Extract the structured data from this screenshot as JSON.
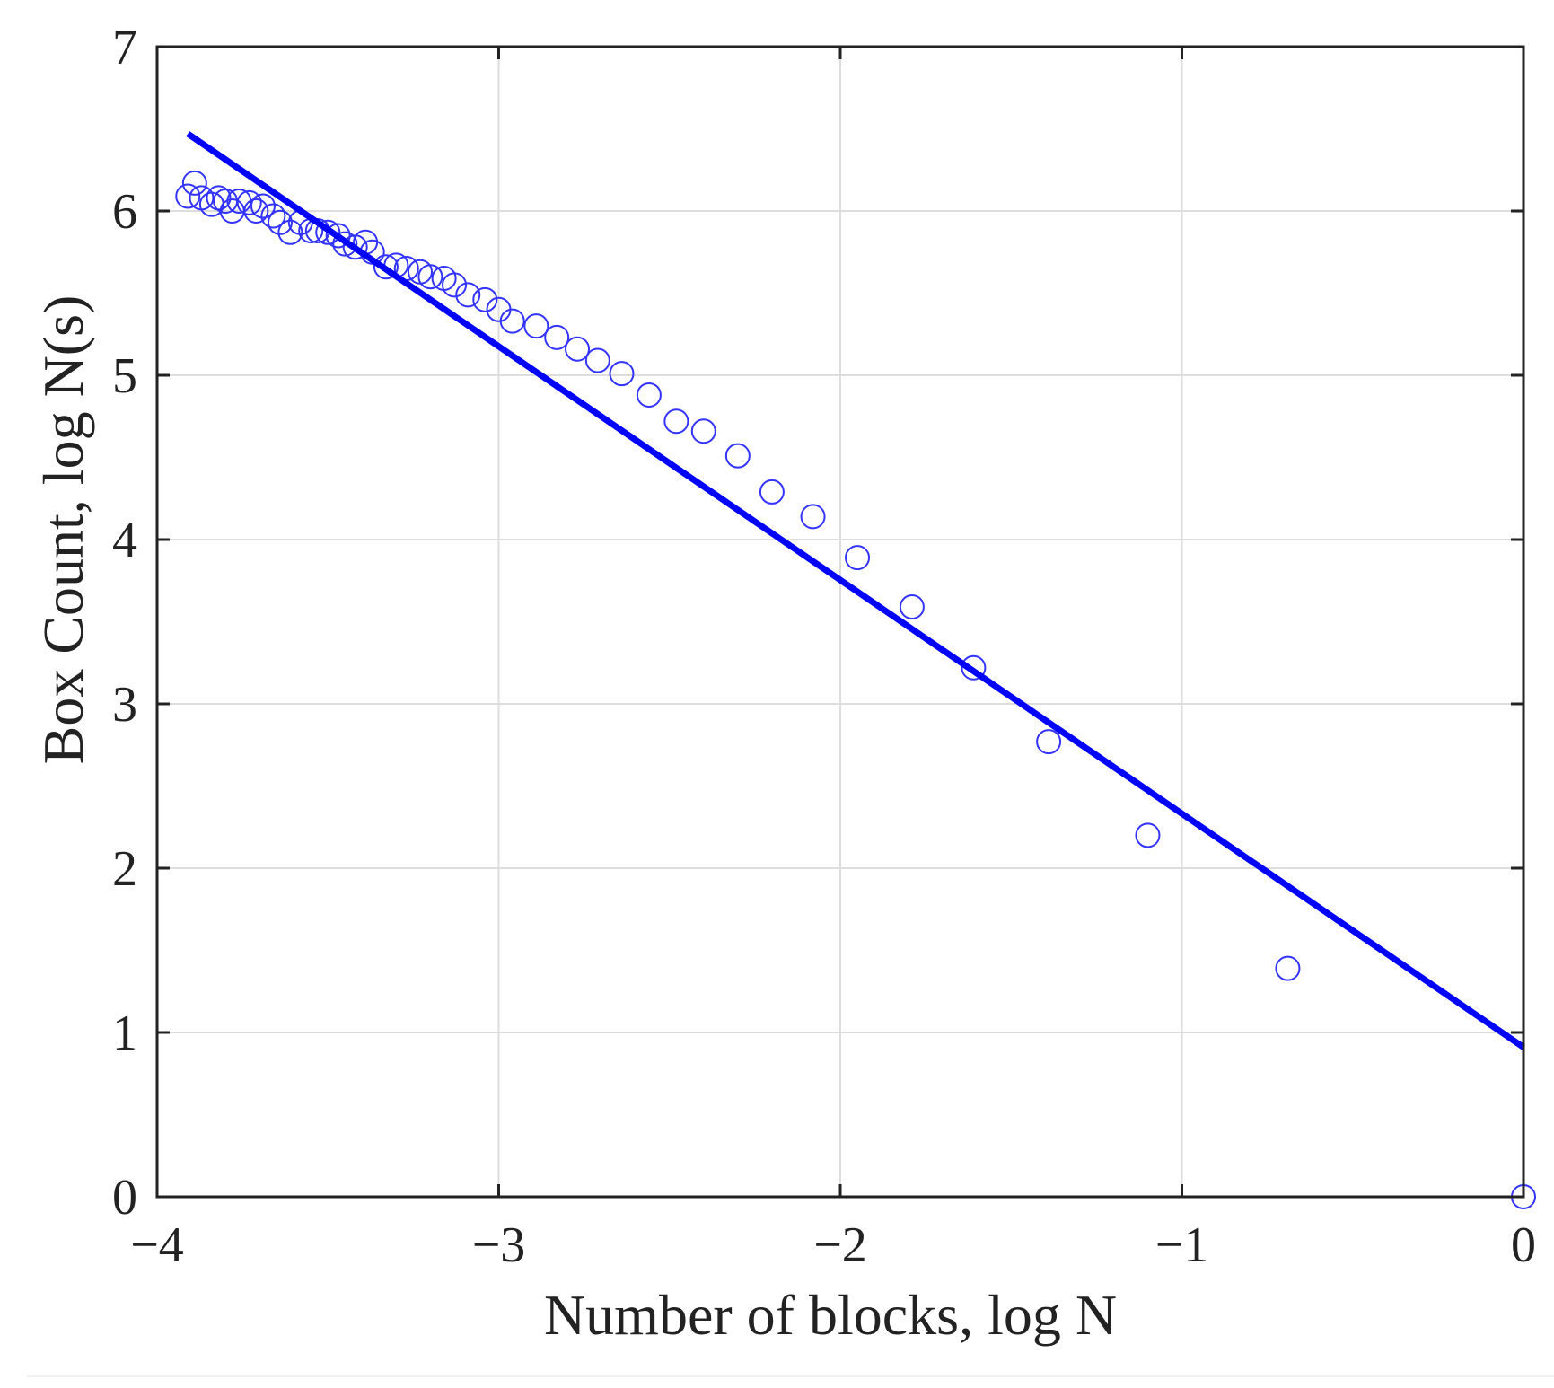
{
  "chart_data": {
    "type": "scatter",
    "title": "",
    "xlabel": "Number of blocks, log N",
    "ylabel": "Box Count, log N(s)",
    "xlim": [
      -4,
      0
    ],
    "ylim": [
      0,
      7
    ],
    "grid": true,
    "legend": "none",
    "x_ticks": [
      -4,
      -3,
      -2,
      -1,
      0
    ],
    "x_tick_labels": [
      "−4",
      "−3",
      "−2",
      "−1",
      "0"
    ],
    "y_ticks": [
      0,
      1,
      2,
      3,
      4,
      5,
      6,
      7
    ],
    "y_tick_labels": [
      "0",
      "1",
      "2",
      "3",
      "4",
      "5",
      "6",
      "7"
    ],
    "series": [
      {
        "type": "scatter",
        "marker": "open-circle",
        "color": "#3333ff",
        "x": [
          -3.91,
          -3.89,
          -3.87,
          -3.84,
          -3.82,
          -3.8,
          -3.78,
          -3.76,
          -3.73,
          -3.71,
          -3.69,
          -3.66,
          -3.64,
          -3.61,
          -3.58,
          -3.55,
          -3.53,
          -3.5,
          -3.47,
          -3.45,
          -3.42,
          -3.39,
          -3.37,
          -3.33,
          -3.3,
          -3.27,
          -3.23,
          -3.2,
          -3.16,
          -3.13,
          -3.09,
          -3.04,
          -3.0,
          -2.96,
          -2.89,
          -2.83,
          -2.77,
          -2.71,
          -2.64,
          -2.56,
          -2.48,
          -2.4,
          -2.3,
          -2.2,
          -2.08,
          -1.95,
          -1.79,
          -1.61,
          -1.39,
          -1.1,
          -0.69,
          0.0
        ],
        "y": [
          6.09,
          6.17,
          6.08,
          6.04,
          6.08,
          6.06,
          6.0,
          6.06,
          6.05,
          6.0,
          6.03,
          5.97,
          5.93,
          5.87,
          5.93,
          5.88,
          5.88,
          5.87,
          5.85,
          5.8,
          5.78,
          5.81,
          5.75,
          5.66,
          5.67,
          5.65,
          5.63,
          5.6,
          5.59,
          5.55,
          5.49,
          5.46,
          5.4,
          5.33,
          5.3,
          5.23,
          5.16,
          5.09,
          5.01,
          4.88,
          4.72,
          4.66,
          4.51,
          4.29,
          4.14,
          3.89,
          3.59,
          3.22,
          2.77,
          2.2,
          1.39,
          0.0
        ]
      },
      {
        "type": "line",
        "color": "#0000ff",
        "x": [
          -3.91,
          0.0
        ],
        "y": [
          6.47,
          0.91
        ]
      }
    ]
  }
}
